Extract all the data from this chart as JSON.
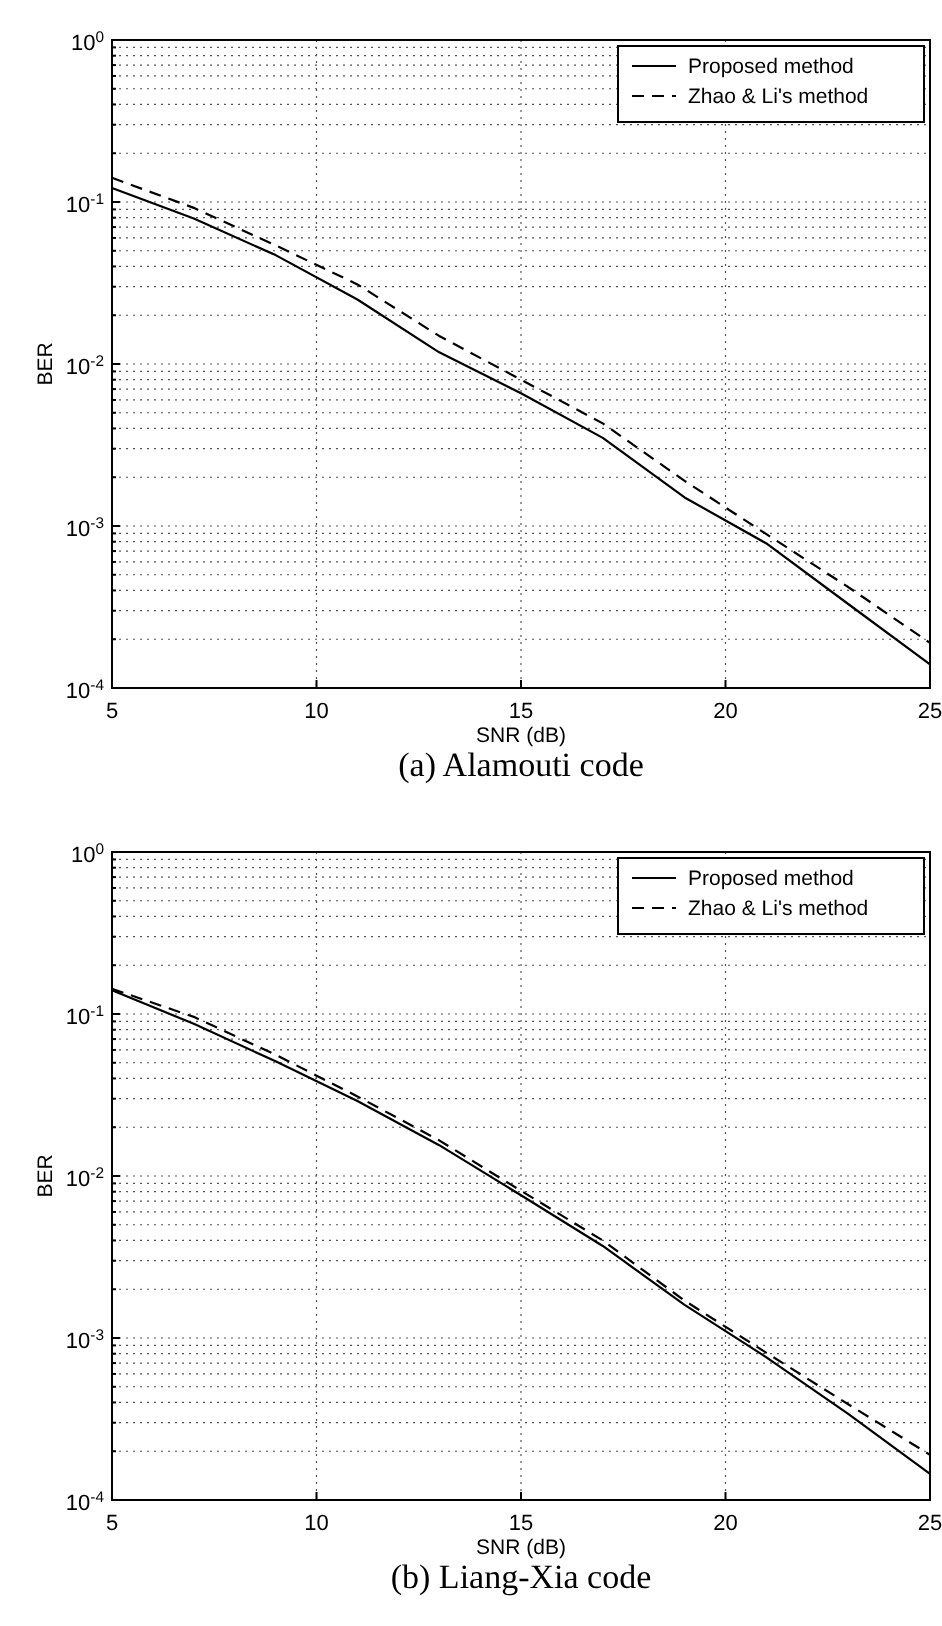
{
  "chart_data": [
    {
      "type": "line",
      "title": "(a) Alamouti code",
      "xlabel": "SNR (dB)",
      "ylabel": "BER",
      "log": "y",
      "grid": true,
      "legend": "top right",
      "marker": "none",
      "xlim": [
        5,
        25
      ],
      "xticks": [
        5,
        10,
        15,
        20,
        25
      ],
      "ylim": [
        0.0001,
        1
      ],
      "yticks": [
        {
          "value": 0.0001,
          "label": "10$^{-4}$"
        },
        {
          "value": 0.0002,
          "label": null
        },
        {
          "value": 0.0003,
          "label": null
        },
        {
          "value": 0.0004,
          "label": null
        },
        {
          "value": 0.0005,
          "label": null
        },
        {
          "value": 0.0006,
          "label": null
        },
        {
          "value": 0.0007,
          "label": null
        },
        {
          "value": 0.0008,
          "label": null
        },
        {
          "value": 0.0009,
          "label": null
        },
        {
          "value": 0.001,
          "label": "10$^{-3}$"
        },
        {
          "value": 0.002,
          "label": null
        },
        {
          "value": 0.003,
          "label": null
        },
        {
          "value": 0.004,
          "label": null
        },
        {
          "value": 0.005,
          "label": null
        },
        {
          "value": 0.006,
          "label": null
        },
        {
          "value": 0.007,
          "label": null
        },
        {
          "value": 0.008,
          "label": null
        },
        {
          "value": 0.009,
          "label": null
        },
        {
          "value": 0.01,
          "label": "10$^{-2}$"
        },
        {
          "value": 0.02,
          "label": null
        },
        {
          "value": 0.03,
          "label": null
        },
        {
          "value": 0.04,
          "label": null
        },
        {
          "value": 0.05,
          "label": null
        },
        {
          "value": 0.06,
          "label": null
        },
        {
          "value": 0.07,
          "label": null
        },
        {
          "value": 0.08,
          "label": null
        },
        {
          "value": 0.09,
          "label": null
        },
        {
          "value": 0.1,
          "label": "10$^{-1}$"
        },
        {
          "value": 0.2,
          "label": null
        },
        {
          "value": 0.3,
          "label": null
        },
        {
          "value": 0.4,
          "label": null
        },
        {
          "value": 0.5,
          "label": null
        },
        {
          "value": 0.6,
          "label": null
        },
        {
          "value": 0.7,
          "label": null
        },
        {
          "value": 0.8,
          "label": null
        },
        {
          "value": 0.9,
          "label": null
        },
        {
          "value": 1,
          "label": "10$^{0}$"
        }
      ],
      "x": [
        5,
        7,
        9,
        11,
        13,
        15,
        17,
        19,
        21,
        23,
        25
      ],
      "series": [
        {
          "name": "Proposed method",
          "color": "#000000",
          "line_style": "solid",
          "values": [
            0.122,
            0.079,
            0.047,
            0.025,
            0.0118,
            0.0066,
            0.0035,
            0.0015,
            0.00078,
            0.00033,
            0.00014
          ]
        },
        {
          "name": "Zhao & Li's method",
          "color": "#000000",
          "line_style": "dashed",
          "values": [
            0.141,
            0.092,
            0.054,
            0.031,
            0.0149,
            0.008,
            0.0043,
            0.0019,
            0.00089,
            0.00042,
            0.00019
          ]
        }
      ]
    },
    {
      "type": "line",
      "title": "(b) Liang-Xia code",
      "xlabel": "SNR (dB)",
      "ylabel": "BER",
      "log": "y",
      "grid": true,
      "legend": "top right",
      "marker": "none",
      "xlim": [
        5,
        25
      ],
      "xticks": [
        5,
        10,
        15,
        20,
        25
      ],
      "ylim": [
        0.0001,
        1
      ],
      "yticks": [
        {
          "value": 0.0001,
          "label": "10$^{-4}$"
        },
        {
          "value": 0.0002,
          "label": null
        },
        {
          "value": 0.0003,
          "label": null
        },
        {
          "value": 0.0004,
          "label": null
        },
        {
          "value": 0.0005,
          "label": null
        },
        {
          "value": 0.0006,
          "label": null
        },
        {
          "value": 0.0007,
          "label": null
        },
        {
          "value": 0.0008,
          "label": null
        },
        {
          "value": 0.0009,
          "label": null
        },
        {
          "value": 0.001,
          "label": "10$^{-3}$"
        },
        {
          "value": 0.002,
          "label": null
        },
        {
          "value": 0.003,
          "label": null
        },
        {
          "value": 0.004,
          "label": null
        },
        {
          "value": 0.005,
          "label": null
        },
        {
          "value": 0.006,
          "label": null
        },
        {
          "value": 0.007,
          "label": null
        },
        {
          "value": 0.008,
          "label": null
        },
        {
          "value": 0.009,
          "label": null
        },
        {
          "value": 0.01,
          "label": "10$^{-2}$"
        },
        {
          "value": 0.02,
          "label": null
        },
        {
          "value": 0.03,
          "label": null
        },
        {
          "value": 0.04,
          "label": null
        },
        {
          "value": 0.05,
          "label": null
        },
        {
          "value": 0.06,
          "label": null
        },
        {
          "value": 0.07,
          "label": null
        },
        {
          "value": 0.08,
          "label": null
        },
        {
          "value": 0.09,
          "label": null
        },
        {
          "value": 0.1,
          "label": "10$^{-1}$"
        },
        {
          "value": 0.2,
          "label": null
        },
        {
          "value": 0.3,
          "label": null
        },
        {
          "value": 0.4,
          "label": null
        },
        {
          "value": 0.5,
          "label": null
        },
        {
          "value": 0.6,
          "label": null
        },
        {
          "value": 0.7,
          "label": null
        },
        {
          "value": 0.8,
          "label": null
        },
        {
          "value": 0.9,
          "label": null
        },
        {
          "value": 1,
          "label": "10$^{0}$"
        }
      ],
      "x": [
        5,
        7,
        9,
        11,
        13,
        15,
        17,
        19,
        21,
        23,
        25
      ],
      "series": [
        {
          "name": "Proposed method",
          "color": "#000000",
          "line_style": "solid",
          "values": [
            0.14,
            0.087,
            0.051,
            0.029,
            0.0155,
            0.0076,
            0.0037,
            0.0016,
            0.00076,
            0.00034,
            0.000145
          ]
        },
        {
          "name": "Zhao & Li's method",
          "color": "#000000",
          "line_style": "dashed",
          "values": [
            0.143,
            0.096,
            0.056,
            0.031,
            0.0166,
            0.0081,
            0.004,
            0.0017,
            0.00081,
            0.00039,
            0.00019
          ]
        }
      ]
    }
  ]
}
